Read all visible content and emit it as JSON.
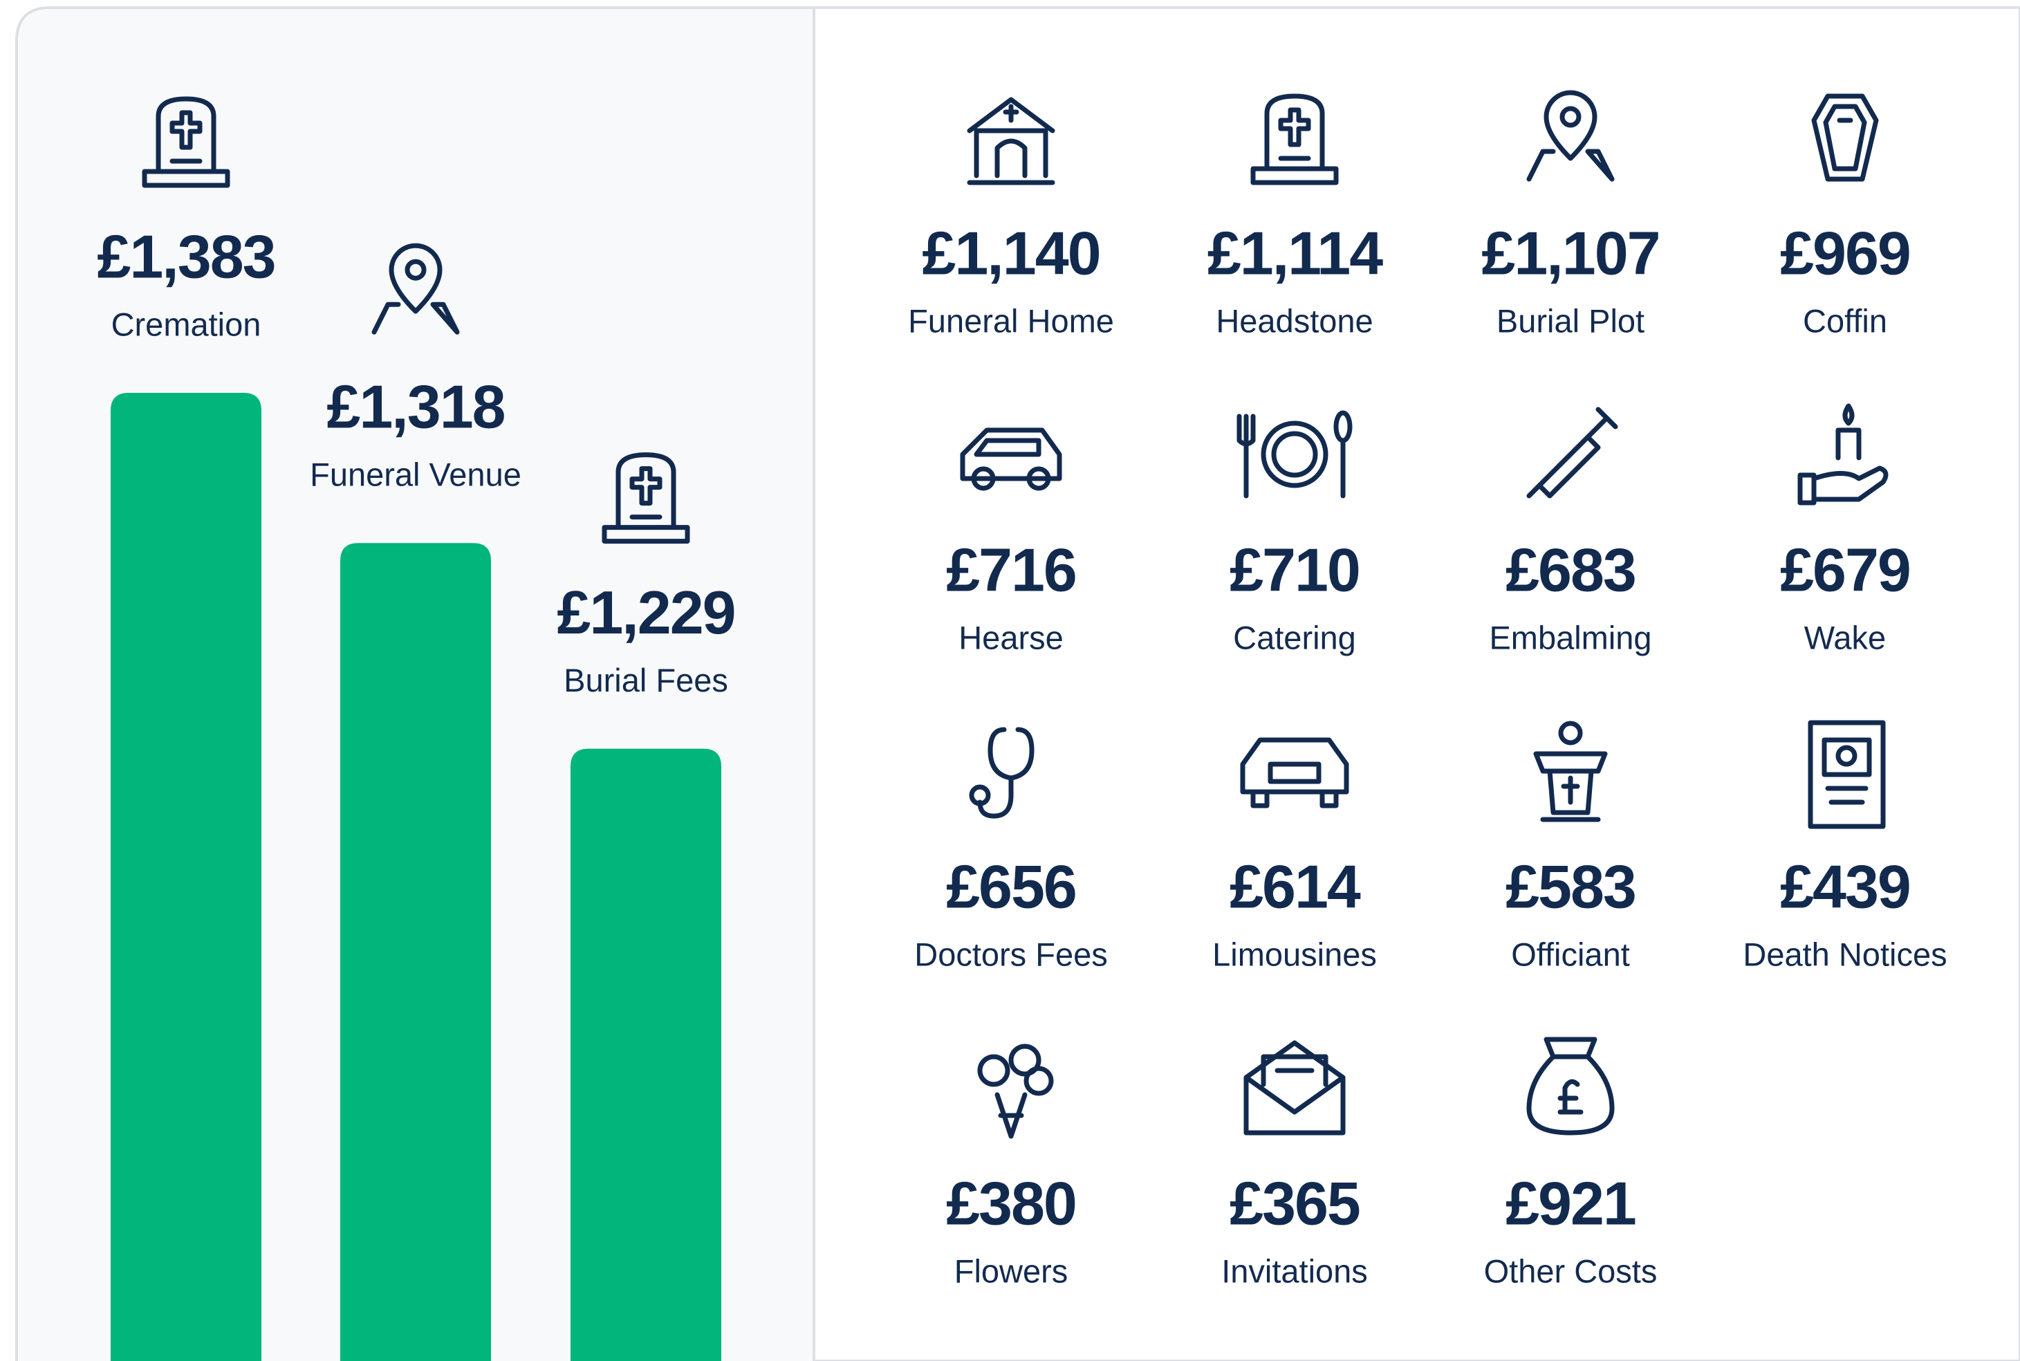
{
  "chart_data": {
    "type": "bar",
    "categories": [
      "Cremation",
      "Funeral Venue",
      "Burial Fees"
    ],
    "values": [
      1383,
      1318,
      1229
    ],
    "value_labels": [
      "£1,383",
      "£1,318",
      "£1,229"
    ],
    "color": "#02b57b",
    "ylim": [
      964,
      1553
    ]
  },
  "items": [
    {
      "value": "£1,140",
      "label": "Funeral Home"
    },
    {
      "value": "£1,114",
      "label": "Headstone"
    },
    {
      "value": "£1,107",
      "label": "Burial Plot"
    },
    {
      "value": "£969",
      "label": "Coffin"
    },
    {
      "value": "£716",
      "label": "Hearse"
    },
    {
      "value": "£710",
      "label": "Catering"
    },
    {
      "value": "£683",
      "label": "Embalming"
    },
    {
      "value": "£679",
      "label": "Wake"
    },
    {
      "value": "£656",
      "label": "Doctors Fees"
    },
    {
      "value": "£614",
      "label": "Limousines"
    },
    {
      "value": "£583",
      "label": "Officiant"
    },
    {
      "value": "£439",
      "label": "Death Notices"
    },
    {
      "value": "£380",
      "label": "Flowers"
    },
    {
      "value": "£365",
      "label": "Invitations"
    },
    {
      "value": "£921",
      "label": "Other Costs"
    }
  ]
}
